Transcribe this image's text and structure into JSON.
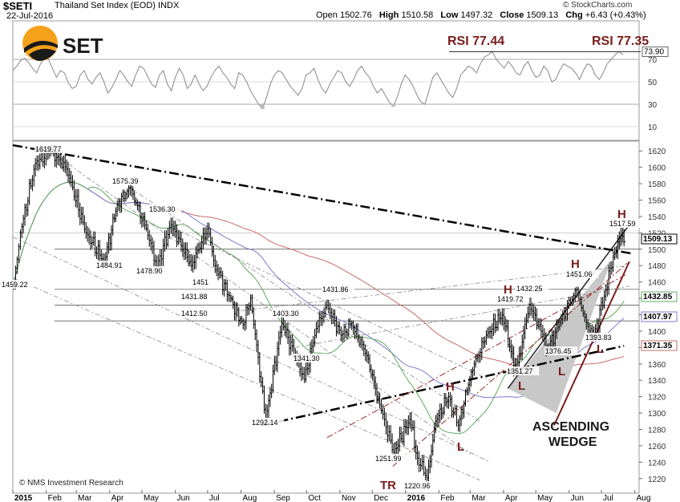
{
  "header": {
    "symbol": "$SETI",
    "name": "Thailand Set Index (EOD)",
    "exchange": "INDX",
    "date": "22-Jul-2016",
    "source": "© StockCharts.com",
    "ohlc": {
      "open_label": "Open",
      "open": "1502.76",
      "high_label": "High",
      "high": "1510.58",
      "low_label": "Low",
      "low": "1497.32",
      "close_label": "Close",
      "close": "1509.13",
      "chg_label": "Chg",
      "chg": "+6.43 (+0.43%)"
    }
  },
  "logo": {
    "text": "SET",
    "color": "#f6a11a"
  },
  "credit": "© NMS Investment Research",
  "chart_data": [
    {
      "type": "line",
      "panel": "rsi",
      "y_ticks": [
        "70",
        "50",
        "30",
        "10"
      ],
      "ylim": [
        0,
        100
      ],
      "last_value": "73.90",
      "annotations": [
        {
          "text": "RSI  77.44",
          "x": "Mar 2016"
        },
        {
          "text": "RSI  77.35",
          "x": "Jul 2016"
        }
      ],
      "series": [
        {
          "values": [
            60,
            64,
            69,
            71,
            67,
            62,
            58,
            66,
            72,
            70,
            62,
            54,
            60,
            58,
            49,
            44,
            46,
            56,
            60,
            52,
            48,
            54,
            58,
            50,
            40,
            45,
            52,
            60,
            56,
            50,
            46,
            56,
            64,
            62,
            55,
            48,
            45,
            56,
            60,
            48,
            42,
            54,
            62,
            56,
            44,
            48,
            56,
            48,
            42,
            46,
            54,
            60,
            64,
            58,
            54,
            48,
            44,
            58,
            56,
            50,
            42,
            36,
            30,
            26,
            36,
            48,
            56,
            60,
            58,
            52,
            46,
            42,
            38,
            44,
            56,
            58,
            62,
            52,
            44,
            40,
            48,
            54,
            60,
            58,
            50,
            46,
            52,
            60,
            64,
            58,
            54,
            46,
            40,
            44,
            38,
            32,
            28,
            36,
            48,
            56,
            52,
            46,
            38,
            32,
            30,
            42,
            54,
            58,
            52,
            46,
            40,
            36,
            44,
            56,
            60,
            64,
            62,
            58,
            66,
            72,
            74,
            77,
            70,
            66,
            62,
            68,
            64,
            58,
            56,
            64,
            68,
            60,
            54,
            56,
            64,
            60,
            50,
            52,
            60,
            66,
            64,
            62,
            58,
            52,
            60,
            66,
            64,
            56,
            52,
            58,
            66,
            70,
            74,
            77,
            73.9
          ]
        }
      ]
    },
    {
      "type": "ohlc",
      "panel": "price",
      "title": "",
      "x_ticks": [
        "2015",
        "Feb",
        "Mar",
        "Apr",
        "May",
        "Jun",
        "Jul",
        "Aug",
        "Sep",
        "Oct",
        "Nov",
        "Dec",
        "2016",
        "Feb",
        "Mar",
        "Apr",
        "May",
        "Jun",
        "Jul",
        "Aug"
      ],
      "y_ticks": [
        "1620",
        "1600",
        "1580",
        "1560",
        "1540",
        "1520",
        "1500",
        "1480",
        "1460",
        "1440",
        "1420",
        "1400",
        "1380",
        "1360",
        "1340",
        "1320",
        "1300",
        "1280",
        "1260",
        "1240",
        "1220"
      ],
      "ylim": [
        1210,
        1630
      ],
      "last_close": "1509.13",
      "ma_values": [
        "1432.85",
        "1407.97",
        "1371.35"
      ],
      "price_labels": [
        "1619.77",
        "1459.22",
        "1575.39",
        "1484.91",
        "1536.30",
        "1478.90",
        "1451",
        "1431.88",
        "1412.50",
        "1431.86",
        "1403.30",
        "1292.14",
        "1341.30",
        "1251.99",
        "1220.96",
        "1419.72",
        "1432.25",
        "1351.27",
        "1376.45",
        "1451.06",
        "1393.83",
        "1517.59"
      ],
      "pattern_labels": [
        {
          "text": "H",
          "at": "Jan 2016"
        },
        {
          "text": "L",
          "at": "Feb 2016"
        },
        {
          "text": "H",
          "at": "Mar 2016"
        },
        {
          "text": "L",
          "at": "Apr 2016"
        },
        {
          "text": "H",
          "at": "May 2016"
        },
        {
          "text": "L",
          "at": "May 2016"
        },
        {
          "text": "L",
          "at": "Jul 2016"
        },
        {
          "text": "H",
          "at": "Jul 2016"
        },
        {
          "text": "TR",
          "at": "Dec 2015"
        },
        {
          "text": "ASCENDING",
          "at": "Apr–Jun 2016"
        },
        {
          "text": "WEDGE",
          "at": "Apr–Jun 2016"
        }
      ],
      "pivots": [
        {
          "date": "2015-01-02",
          "price": 1459.22
        },
        {
          "date": "2015-01-08",
          "price": 1520
        },
        {
          "date": "2015-01-22",
          "price": 1605
        },
        {
          "date": "2015-02-05",
          "price": 1619.77
        },
        {
          "date": "2015-02-20",
          "price": 1598
        },
        {
          "date": "2015-03-10",
          "price": 1520
        },
        {
          "date": "2015-03-27",
          "price": 1484.91
        },
        {
          "date": "2015-04-08",
          "price": 1555
        },
        {
          "date": "2015-04-20",
          "price": 1575.39
        },
        {
          "date": "2015-05-05",
          "price": 1525
        },
        {
          "date": "2015-05-15",
          "price": 1478.9
        },
        {
          "date": "2015-05-28",
          "price": 1530
        },
        {
          "date": "2015-06-16",
          "price": 1480
        },
        {
          "date": "2015-07-01",
          "price": 1525
        },
        {
          "date": "2015-07-08",
          "price": 1480
        },
        {
          "date": "2015-07-22",
          "price": 1440
        },
        {
          "date": "2015-08-03",
          "price": 1408
        },
        {
          "date": "2015-08-10",
          "price": 1440
        },
        {
          "date": "2015-08-24",
          "price": 1292.14
        },
        {
          "date": "2015-09-08",
          "price": 1410
        },
        {
          "date": "2015-09-29",
          "price": 1341.3
        },
        {
          "date": "2015-10-10",
          "price": 1403.3
        },
        {
          "date": "2015-10-20",
          "price": 1431.86
        },
        {
          "date": "2015-11-02",
          "price": 1395
        },
        {
          "date": "2015-11-12",
          "price": 1410
        },
        {
          "date": "2015-11-26",
          "price": 1370
        },
        {
          "date": "2015-12-08",
          "price": 1310
        },
        {
          "date": "2015-12-21",
          "price": 1251.99
        },
        {
          "date": "2016-01-05",
          "price": 1292
        },
        {
          "date": "2016-01-12",
          "price": 1245
        },
        {
          "date": "2016-01-21",
          "price": 1220.96
        },
        {
          "date": "2016-01-29",
          "price": 1290
        },
        {
          "date": "2016-02-10",
          "price": 1320
        },
        {
          "date": "2016-02-19",
          "price": 1285
        },
        {
          "date": "2016-03-02",
          "price": 1350
        },
        {
          "date": "2016-03-16",
          "price": 1395
        },
        {
          "date": "2016-03-31",
          "price": 1419.72
        },
        {
          "date": "2016-04-08",
          "price": 1375
        },
        {
          "date": "2016-04-13",
          "price": 1351.27
        },
        {
          "date": "2016-04-25",
          "price": 1432.25
        },
        {
          "date": "2016-05-06",
          "price": 1400
        },
        {
          "date": "2016-05-12",
          "price": 1376.45
        },
        {
          "date": "2016-05-26",
          "price": 1420
        },
        {
          "date": "2016-06-08",
          "price": 1451.06
        },
        {
          "date": "2016-06-17",
          "price": 1410
        },
        {
          "date": "2016-06-24",
          "price": 1393.83
        },
        {
          "date": "2016-07-05",
          "price": 1450
        },
        {
          "date": "2016-07-12",
          "price": 1490
        },
        {
          "date": "2016-07-19",
          "price": 1517.59
        },
        {
          "date": "2016-07-22",
          "price": 1509.13
        }
      ]
    }
  ]
}
